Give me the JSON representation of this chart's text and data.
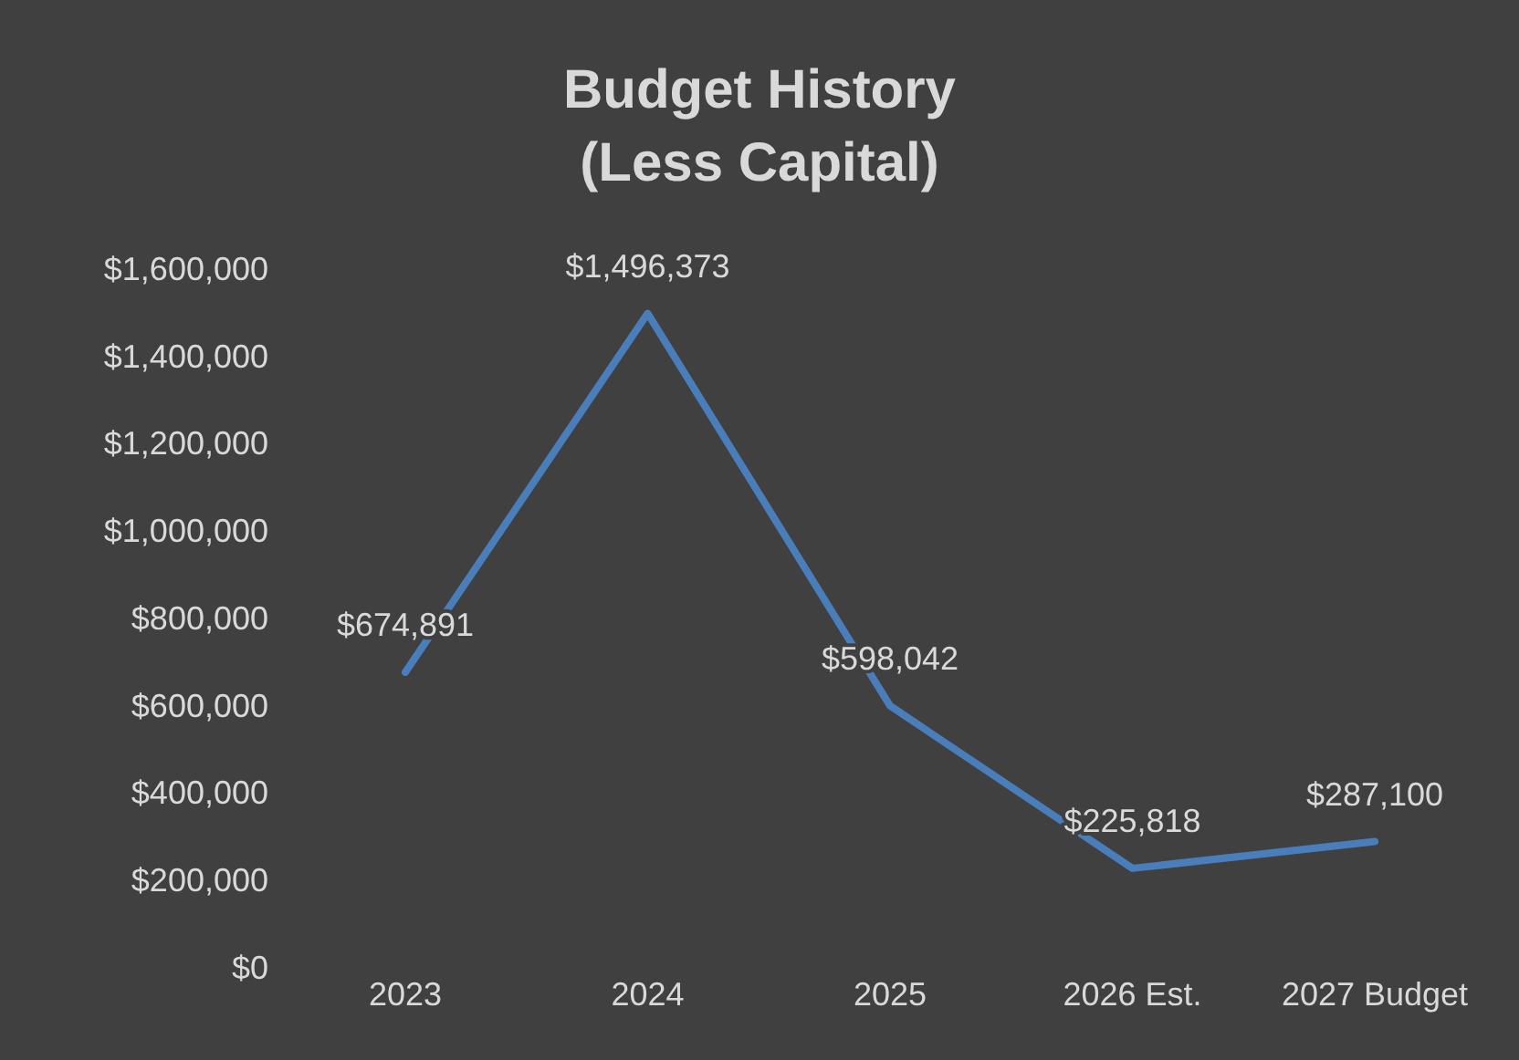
{
  "chart_data": {
    "type": "line",
    "title": "Budget History",
    "subtitle": "(Less Capital)",
    "categories": [
      "2023",
      "2024",
      "2025",
      "2026 Est.",
      "2027 Budget"
    ],
    "series": [
      {
        "color": "#4a7ebb",
        "values": [
          674891,
          1496373,
          598042,
          225818,
          287100
        ],
        "value_labels": [
          "$674,891",
          "$1,496,373",
          "$598,042",
          "$225,818",
          "$287,100"
        ]
      }
    ],
    "ylim": [
      0,
      1600000
    ],
    "yticks": [
      {
        "value": 0,
        "label": "$0"
      },
      {
        "value": 200000,
        "label": "$200,000"
      },
      {
        "value": 400000,
        "label": "$400,000"
      },
      {
        "value": 600000,
        "label": "$600,000"
      },
      {
        "value": 800000,
        "label": "$800,000"
      },
      {
        "value": 1000000,
        "label": "$1,000,000"
      },
      {
        "value": 1200000,
        "label": "$1,200,000"
      },
      {
        "value": 1400000,
        "label": "$1,400,000"
      },
      {
        "value": 1600000,
        "label": "$1,600,000"
      }
    ],
    "grid": false,
    "marker": "none",
    "line_style": "solid"
  }
}
